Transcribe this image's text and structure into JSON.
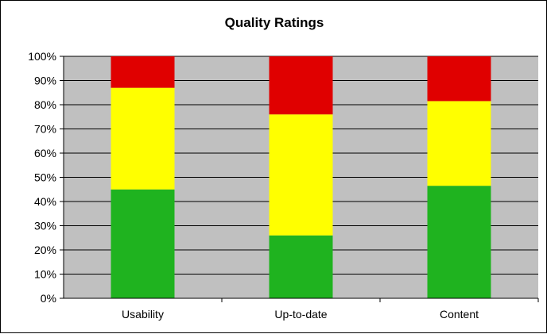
{
  "chart_data": {
    "type": "bar",
    "stacked": true,
    "percent_stacked": true,
    "title": "Quality Ratings",
    "xlabel": "",
    "ylabel": "",
    "categories": [
      "Usability",
      "Up-to-date",
      "Content"
    ],
    "series": [
      {
        "color": "#1fb31f",
        "values": [
          45,
          26,
          46.5
        ]
      },
      {
        "color": "#ffff00",
        "values": [
          42,
          50,
          35
        ]
      },
      {
        "color": "#e00000",
        "values": [
          13,
          24,
          18.5
        ]
      }
    ],
    "ylim": [
      0,
      100
    ],
    "yticks": [
      "0%",
      "10%",
      "20%",
      "30%",
      "40%",
      "50%",
      "60%",
      "70%",
      "80%",
      "90%",
      "100%"
    ],
    "grid": true,
    "legend": "none",
    "plot_background": "#c0c0c0"
  }
}
